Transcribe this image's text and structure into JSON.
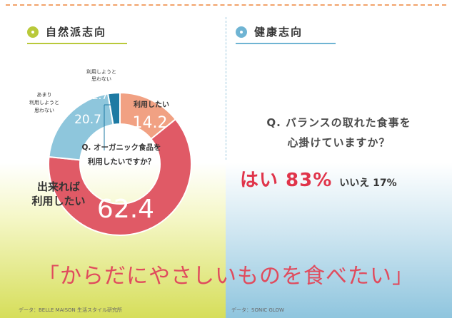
{
  "left": {
    "section_title": "自然派志向",
    "question_line1": "Q. オーガニック食品を",
    "question_line2": "利用したいですか？",
    "source": "データ：BELLE MAISON 生活スタイル研究所"
  },
  "right": {
    "section_title": "健康志向",
    "question_line1": "Q. バランスの取れた食事を",
    "question_line2": "心掛けていますか？",
    "yes_label": "はい 83%",
    "no_label": "いいえ 17%",
    "source": "データ：SONIC GLOW"
  },
  "headline": "「からだにやさしいものを食べたい」",
  "colors": {
    "accent_green": "#b9c93a",
    "accent_blue": "#6fb4d3",
    "red": "#e05a66",
    "salmon": "#f1a183",
    "light_blue": "#8ec6dc",
    "dark_teal": "#1d7aa3"
  },
  "chart_data": {
    "type": "pie",
    "donut": true,
    "slices": [
      {
        "label": "利用したい",
        "value": 14.2,
        "value_text": "14.2",
        "color": "#f1a183"
      },
      {
        "label": "出来れば利用したい",
        "value": 62.4,
        "value_text": "62.4",
        "color": "#e05a66"
      },
      {
        "label": "あまり利用しようと思わない",
        "value": 20.7,
        "value_text": "20.7",
        "color": "#8ec6dc"
      },
      {
        "label": "利用しようと思わない",
        "value": 2.7,
        "value_text": "2.7",
        "color": "#1d7aa3"
      }
    ]
  }
}
